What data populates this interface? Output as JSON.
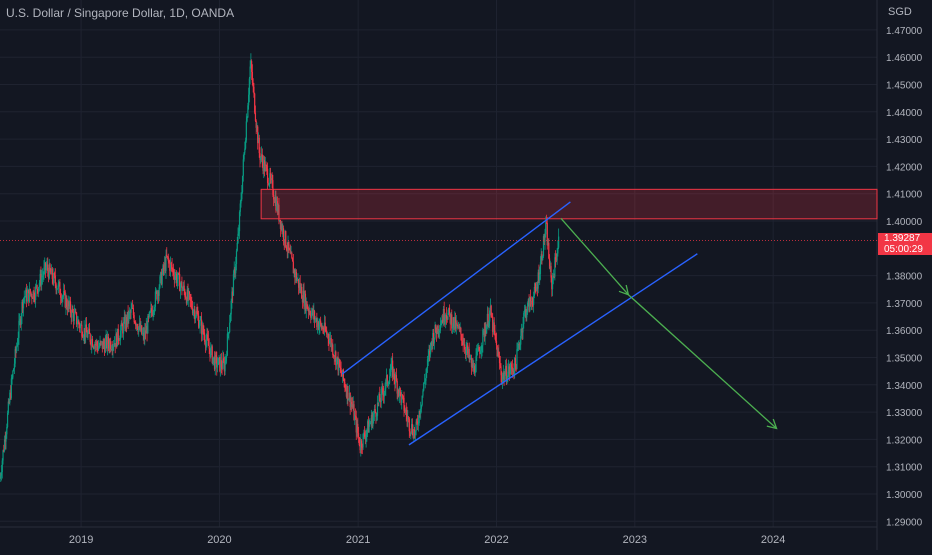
{
  "chart_data": {
    "type": "candlestick",
    "title": "U.S. Dollar / Singapore Dollar, 1D, OANDA",
    "currency": "SGD",
    "y_axis": {
      "range": [
        1.29,
        1.475
      ],
      "tick_labels": [
        "1.47000",
        "1.46000",
        "1.45000",
        "1.44000",
        "1.43000",
        "1.42000",
        "1.41000",
        "1.40000",
        "1.38000",
        "1.37000",
        "1.36000",
        "1.35000",
        "1.34000",
        "1.33000",
        "1.32000",
        "1.31000",
        "1.30000",
        "1.29000"
      ],
      "position": "right",
      "grid": true
    },
    "x_axis": {
      "range": [
        "2018-06-01",
        "2024-10-01"
      ],
      "tick_labels": [
        "2019",
        "2020",
        "2021",
        "2022",
        "2023",
        "2024"
      ],
      "grid": true
    },
    "last_price": {
      "value": 1.39287,
      "label": "1.39287",
      "countdown": "05:00:29"
    },
    "price_path": [
      [
        "2018-06-01",
        1.306
      ],
      [
        "2018-07-01",
        1.34
      ],
      [
        "2018-08-01",
        1.372
      ],
      [
        "2018-09-01",
        1.374
      ],
      [
        "2018-10-01",
        1.383
      ],
      [
        "2018-11-01",
        1.376
      ],
      [
        "2018-12-01",
        1.368
      ],
      [
        "2019-01-01",
        1.361
      ],
      [
        "2019-02-15",
        1.354
      ],
      [
        "2019-04-01",
        1.356
      ],
      [
        "2019-05-15",
        1.367
      ],
      [
        "2019-06-15",
        1.357
      ],
      [
        "2019-08-15",
        1.386
      ],
      [
        "2019-09-15",
        1.378
      ],
      [
        "2019-11-01",
        1.366
      ],
      [
        "2019-12-20",
        1.348
      ],
      [
        "2020-01-15",
        1.347
      ],
      [
        "2020-02-20",
        1.395
      ],
      [
        "2020-03-23",
        1.458
      ],
      [
        "2020-04-15",
        1.425
      ],
      [
        "2020-05-20",
        1.412
      ],
      [
        "2020-06-15",
        1.397
      ],
      [
        "2020-07-15",
        1.382
      ],
      [
        "2020-08-15",
        1.37
      ],
      [
        "2020-09-15",
        1.363
      ],
      [
        "2020-10-15",
        1.358
      ],
      [
        "2020-11-15",
        1.345
      ],
      [
        "2020-12-15",
        1.333
      ],
      [
        "2021-01-06",
        1.318
      ],
      [
        "2021-02-15",
        1.33
      ],
      [
        "2021-03-31",
        1.346
      ],
      [
        "2021-05-15",
        1.326
      ],
      [
        "2021-06-01",
        1.322
      ],
      [
        "2021-07-15",
        1.357
      ],
      [
        "2021-08-20",
        1.367
      ],
      [
        "2021-10-01",
        1.358
      ],
      [
        "2021-11-01",
        1.345
      ],
      [
        "2021-12-15",
        1.367
      ],
      [
        "2022-01-15",
        1.343
      ],
      [
        "2022-02-20",
        1.347
      ],
      [
        "2022-03-15",
        1.366
      ],
      [
        "2022-04-15",
        1.374
      ],
      [
        "2022-05-12",
        1.398
      ],
      [
        "2022-05-26",
        1.376
      ],
      [
        "2022-06-14",
        1.393
      ]
    ],
    "annotations": [
      {
        "kind": "zone",
        "color": "#f23645",
        "from": "2020-04-20",
        "to": "2024-10-01",
        "y_low": 1.4008,
        "y_high": 1.4116
      },
      {
        "kind": "trendline",
        "color": "#2962ff",
        "start": [
          "2020-11-20",
          1.344
        ],
        "end": [
          "2022-07-15",
          1.407
        ]
      },
      {
        "kind": "trendline",
        "color": "#2962ff",
        "start": [
          "2021-05-15",
          1.318
        ],
        "end": [
          "2023-06-15",
          1.388
        ]
      },
      {
        "kind": "arrow",
        "color": "#4caf50",
        "start": [
          "2022-06-20",
          1.401
        ],
        "end": [
          "2022-12-15",
          1.373
        ]
      },
      {
        "kind": "arrow",
        "color": "#4caf50",
        "start": [
          "2022-12-15",
          1.373
        ],
        "end": [
          "2024-01-10",
          1.324
        ]
      }
    ],
    "colors": {
      "up": "#089981",
      "down": "#f23645",
      "background": "#131722",
      "grid": "#1f2330",
      "text": "#b2b5be"
    }
  }
}
